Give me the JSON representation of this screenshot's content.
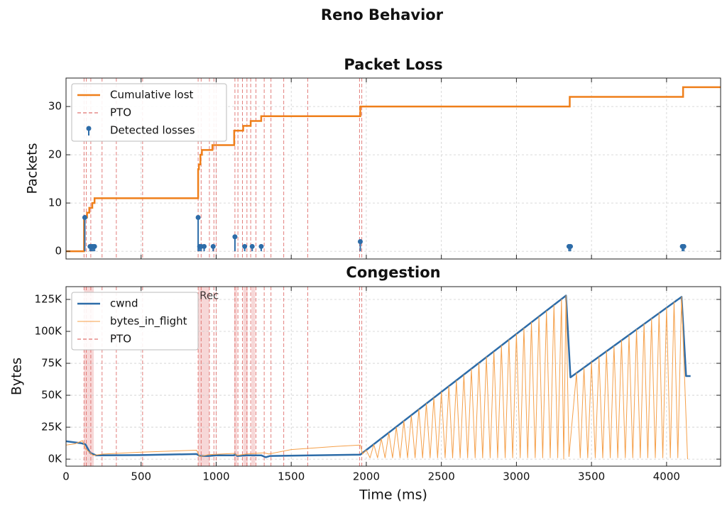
{
  "title": "Reno Behavior",
  "chart_data": [
    {
      "type": "line",
      "title": "Packet Loss",
      "ylabel": "Packets",
      "xlim": [
        0,
        4360
      ],
      "ylim": [
        -1.6,
        35.9
      ],
      "xticks": [
        0,
        500,
        1000,
        1500,
        2000,
        2500,
        3000,
        3500,
        4000
      ],
      "xticklabels": false,
      "yticks": [
        0,
        10,
        20,
        30
      ],
      "grid": true,
      "legend": "upper left",
      "series": [
        {
          "name": "Cumulative lost",
          "style": "steps-post",
          "color": "#ef7f1a",
          "linewidth": 2.5,
          "x": [
            0,
            120,
            140,
            155,
            175,
            190,
            880,
            885,
            895,
            905,
            925,
            975,
            1120,
            1180,
            1230,
            1300,
            1960,
            3355,
            4110,
            4360
          ],
          "values": [
            0,
            7,
            8,
            9,
            10,
            11,
            17,
            18,
            20,
            21,
            21,
            22,
            25,
            26,
            27,
            28,
            30,
            32,
            34,
            34
          ]
        },
        {
          "name": "PTO",
          "style": "vlines",
          "color": "#d9534f",
          "x": [
            120,
            135,
            165,
            240,
            335,
            510,
            880,
            900,
            955,
            985,
            1000,
            1125,
            1145,
            1175,
            1205,
            1230,
            1265,
            1320,
            1365,
            1450,
            1610,
            1955,
            1970
          ]
        },
        {
          "name": "Detected losses",
          "style": "stem",
          "color": "#2d6ca8",
          "x": [
            125,
            160,
            170,
            180,
            190,
            880,
            890,
            900,
            920,
            980,
            1125,
            1190,
            1240,
            1300,
            1960,
            3350,
            3360,
            4105,
            4115
          ],
          "values": [
            7,
            1,
            1,
            1,
            1,
            7,
            1,
            1,
            1,
            1,
            3,
            1,
            1,
            1,
            2,
            1,
            1,
            1,
            1
          ]
        }
      ]
    },
    {
      "type": "line",
      "title": "Congestion",
      "ylabel": "Bytes",
      "xlabel": "Time (ms)",
      "xlim": [
        0,
        4360
      ],
      "ylim": [
        -5500,
        135000
      ],
      "xticks": [
        0,
        500,
        1000,
        1500,
        2000,
        2500,
        3000,
        3500,
        4000
      ],
      "xticklabels": true,
      "yticks": [
        {
          "value": 0,
          "label": "0K"
        },
        {
          "value": 25000,
          "label": "25K"
        },
        {
          "value": 50000,
          "label": "50K"
        },
        {
          "value": 75000,
          "label": "75K"
        },
        {
          "value": 100000,
          "label": "100K"
        },
        {
          "value": 125000,
          "label": "125K"
        }
      ],
      "grid": true,
      "legend": "upper left",
      "spans": [
        [
          120,
          185
        ],
        [
          880,
          955
        ],
        [
          1120,
          1140
        ],
        [
          1180,
          1210
        ],
        [
          1235,
          1260
        ]
      ],
      "span_color": "#f3c6c6",
      "annotation": "Rec",
      "series": [
        {
          "name": "cwnd",
          "style": "line",
          "color": "#2d6ca8",
          "linewidth": 2.5,
          "x": [
            0,
            100,
            130,
            160,
            200,
            500,
            870,
            890,
            950,
            1000,
            1120,
            1125,
            1140,
            1200,
            1300,
            1330,
            1360,
            1960,
            3330,
            3360,
            4100,
            4130,
            4160
          ],
          "values": [
            14000,
            12500,
            11500,
            5000,
            3000,
            3200,
            4000,
            2500,
            2500,
            3000,
            3000,
            4000,
            2500,
            3000,
            3000,
            1500,
            2500,
            3500,
            128000,
            64000,
            127000,
            65000,
            65000
          ]
        },
        {
          "name": "bytes_in_flight",
          "style": "line",
          "color": "#f5a04a",
          "linewidth": 1,
          "x": [
            0,
            60,
            110,
            130,
            180,
            250,
            500,
            870,
            890,
            950,
            1120,
            1140,
            1200,
            1320,
            1350,
            1500,
            1800,
            1960,
            1975,
            2000,
            2025,
            2050,
            2075,
            2100,
            2125,
            2150,
            2175,
            2200,
            2225,
            2250,
            2275,
            2300,
            2325,
            2350,
            2375,
            2400,
            2425,
            2450,
            2475,
            2500,
            2525,
            2550,
            2575,
            2600,
            2625,
            2650,
            2675,
            2700,
            2725,
            2750,
            2775,
            2800,
            2825,
            2850,
            2875,
            2900,
            2925,
            2950,
            2975,
            3000,
            3025,
            3050,
            3075,
            3100,
            3125,
            3150,
            3175,
            3200,
            3225,
            3250,
            3275,
            3300,
            3315,
            3330,
            3350,
            3400,
            3425,
            3450,
            3475,
            3500,
            3525,
            3550,
            3575,
            3600,
            3625,
            3650,
            3675,
            3700,
            3725,
            3750,
            3775,
            3800,
            3825,
            3850,
            3875,
            3900,
            3925,
            3950,
            3975,
            4000,
            4025,
            4050,
            4075,
            4100,
            4140
          ],
          "values": [
            11000,
            12000,
            14500,
            8000,
            3000,
            4000,
            5500,
            7000,
            2000,
            3500,
            4500,
            3000,
            4000,
            5000,
            4000,
            7500,
            10000,
            11000,
            4000,
            7000,
            1000,
            11500,
            1000,
            16000,
            1000,
            20500,
            1000,
            25000,
            1000,
            30000,
            1000,
            34000,
            1000,
            39000,
            1000,
            43500,
            1000,
            48000,
            1000,
            52500,
            1000,
            57000,
            1000,
            61500,
            1000,
            66000,
            1000,
            70500,
            1000,
            75000,
            1000,
            80000,
            1000,
            84000,
            1000,
            89000,
            1000,
            93500,
            1000,
            98000,
            1000,
            102500,
            1000,
            107000,
            1000,
            111500,
            1000,
            116000,
            1000,
            120500,
            1000,
            125000,
            0,
            128000,
            2000,
            67500,
            1000,
            71500,
            1000,
            76000,
            1000,
            80000,
            1000,
            84500,
            1000,
            88500,
            1000,
            93000,
            1000,
            97000,
            1000,
            101500,
            1000,
            106000,
            1000,
            110000,
            1000,
            114500,
            1000,
            118500,
            1000,
            123000,
            1000,
            127000,
            0
          ]
        },
        {
          "name": "PTO",
          "style": "vlines",
          "color": "#d9534f",
          "x": [
            120,
            135,
            165,
            240,
            335,
            510,
            880,
            900,
            955,
            985,
            1000,
            1125,
            1145,
            1175,
            1205,
            1230,
            1265,
            1320,
            1365,
            1450,
            1610,
            1955,
            1970
          ]
        }
      ]
    }
  ]
}
